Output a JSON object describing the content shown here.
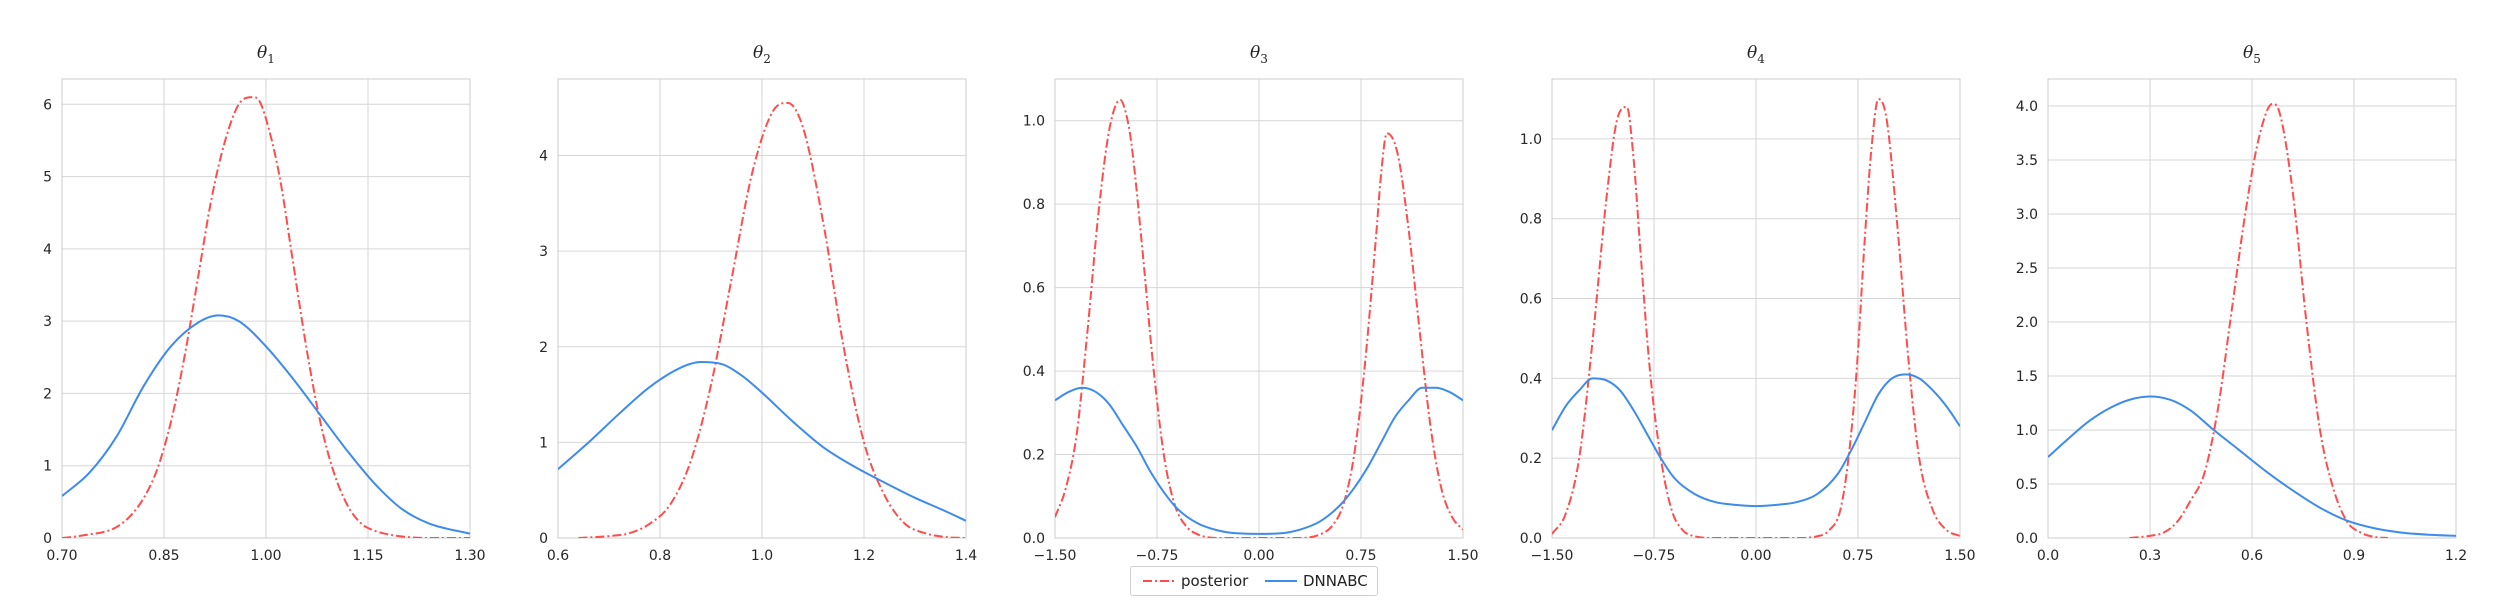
{
  "chart_data": [
    {
      "type": "line",
      "title": "θ",
      "title_sub": "1",
      "xlim": [
        0.7,
        1.3
      ],
      "ylim": [
        0,
        6.35
      ],
      "xticks": [
        0.7,
        0.85,
        1.0,
        1.15,
        1.3
      ],
      "xtick_labels": [
        "0.70",
        "0.85",
        "1.00",
        "1.15",
        "1.30"
      ],
      "yticks": [
        0,
        1,
        2,
        3,
        4,
        5,
        6
      ],
      "ytick_labels": [
        "0",
        "1",
        "2",
        "3",
        "4",
        "5",
        "6"
      ],
      "grid": true,
      "series": [
        {
          "name": "posterior",
          "color": "#ff4d4d",
          "style": "dashdot",
          "x": [
            0.7,
            0.72,
            0.74,
            0.76,
            0.78,
            0.8,
            0.82,
            0.84,
            0.86,
            0.88,
            0.9,
            0.92,
            0.94,
            0.96,
            0.98,
            0.99,
            1.0,
            1.02,
            1.04,
            1.06,
            1.08,
            1.1,
            1.12,
            1.14,
            1.16,
            1.18,
            1.2,
            1.24,
            1.3
          ],
          "y": [
            0.0,
            0.02,
            0.05,
            0.08,
            0.15,
            0.3,
            0.55,
            0.95,
            1.6,
            2.5,
            3.6,
            4.7,
            5.5,
            6.0,
            6.1,
            6.05,
            5.8,
            5.0,
            3.8,
            2.6,
            1.6,
            0.9,
            0.45,
            0.2,
            0.1,
            0.05,
            0.02,
            0.0,
            0.0
          ]
        },
        {
          "name": "DNNABC",
          "color": "#3d8bec",
          "style": "solid",
          "x": [
            0.7,
            0.74,
            0.78,
            0.82,
            0.86,
            0.9,
            0.93,
            0.96,
            1.0,
            1.04,
            1.08,
            1.12,
            1.16,
            1.2,
            1.24,
            1.3
          ],
          "y": [
            0.58,
            0.9,
            1.4,
            2.1,
            2.65,
            2.98,
            3.08,
            3.0,
            2.65,
            2.2,
            1.7,
            1.2,
            0.75,
            0.4,
            0.2,
            0.06
          ]
        }
      ]
    },
    {
      "type": "line",
      "title": "θ",
      "title_sub": "2",
      "xlim": [
        0.6,
        1.4
      ],
      "ylim": [
        0,
        4.8
      ],
      "xticks": [
        0.6,
        0.8,
        1.0,
        1.2,
        1.4
      ],
      "xtick_labels": [
        "0.6",
        "0.8",
        "1.0",
        "1.2",
        "1.4"
      ],
      "yticks": [
        0,
        1,
        2,
        3,
        4
      ],
      "ytick_labels": [
        "0",
        "1",
        "2",
        "3",
        "4"
      ],
      "grid": true,
      "series": [
        {
          "name": "posterior",
          "color": "#ff4d4d",
          "style": "dashdot",
          "x": [
            0.64,
            0.7,
            0.74,
            0.78,
            0.82,
            0.86,
            0.9,
            0.94,
            0.98,
            1.02,
            1.05,
            1.08,
            1.12,
            1.16,
            1.2,
            1.24,
            1.28,
            1.32,
            1.36,
            1.4
          ],
          "y": [
            0.0,
            0.02,
            0.05,
            0.15,
            0.35,
            0.8,
            1.6,
            2.7,
            3.8,
            4.45,
            4.55,
            4.3,
            3.3,
            2.0,
            1.0,
            0.45,
            0.15,
            0.05,
            0.01,
            0.0
          ]
        },
        {
          "name": "DNNABC",
          "color": "#3d8bec",
          "style": "solid",
          "x": [
            0.6,
            0.66,
            0.72,
            0.78,
            0.84,
            0.88,
            0.92,
            0.96,
            1.0,
            1.06,
            1.12,
            1.18,
            1.24,
            1.3,
            1.36,
            1.4
          ],
          "y": [
            0.72,
            1.0,
            1.3,
            1.58,
            1.78,
            1.84,
            1.82,
            1.7,
            1.52,
            1.22,
            0.95,
            0.75,
            0.58,
            0.42,
            0.28,
            0.18
          ]
        }
      ]
    },
    {
      "type": "line",
      "title": "θ",
      "title_sub": "3",
      "xlim": [
        -1.5,
        1.5
      ],
      "ylim": [
        0,
        1.1
      ],
      "xticks": [
        -1.5,
        -0.75,
        0.0,
        0.75,
        1.5
      ],
      "xtick_labels": [
        "−1.50",
        "−0.75",
        "0.00",
        "0.75",
        "1.50"
      ],
      "yticks": [
        0,
        0.2,
        0.4,
        0.6,
        0.8,
        1.0
      ],
      "ytick_labels": [
        "0.0",
        "0.2",
        "0.4",
        "0.6",
        "0.8",
        "1.0"
      ],
      "grid": true,
      "series": [
        {
          "name": "posterior",
          "color": "#ff4d4d",
          "style": "dashdot",
          "x": [
            -1.5,
            -1.42,
            -1.34,
            -1.26,
            -1.18,
            -1.1,
            -1.02,
            -0.98,
            -0.94,
            -0.86,
            -0.78,
            -0.7,
            -0.62,
            -0.54,
            -0.46,
            -0.3,
            0.0,
            0.3,
            0.46,
            0.54,
            0.62,
            0.7,
            0.78,
            0.86,
            0.9,
            0.94,
            1.02,
            1.1,
            1.18,
            1.26,
            1.34,
            1.42,
            1.5
          ],
          "y": [
            0.05,
            0.12,
            0.25,
            0.5,
            0.78,
            0.98,
            1.05,
            1.02,
            0.95,
            0.7,
            0.42,
            0.2,
            0.08,
            0.03,
            0.01,
            0.0,
            0.0,
            0.0,
            0.01,
            0.03,
            0.08,
            0.2,
            0.42,
            0.72,
            0.88,
            0.97,
            0.92,
            0.74,
            0.5,
            0.27,
            0.12,
            0.05,
            0.02
          ]
        },
        {
          "name": "DNNABC",
          "color": "#3d8bec",
          "style": "solid",
          "x": [
            -1.5,
            -1.4,
            -1.3,
            -1.2,
            -1.1,
            -1.0,
            -0.9,
            -0.8,
            -0.7,
            -0.6,
            -0.45,
            -0.3,
            -0.15,
            0.0,
            0.15,
            0.3,
            0.45,
            0.6,
            0.7,
            0.8,
            0.9,
            1.0,
            1.1,
            1.2,
            1.3,
            1.4,
            1.5
          ],
          "y": [
            0.33,
            0.35,
            0.36,
            0.35,
            0.32,
            0.27,
            0.22,
            0.16,
            0.11,
            0.07,
            0.035,
            0.018,
            0.011,
            0.01,
            0.011,
            0.02,
            0.04,
            0.08,
            0.12,
            0.17,
            0.23,
            0.29,
            0.33,
            0.36,
            0.36,
            0.35,
            0.33
          ]
        }
      ]
    },
    {
      "type": "line",
      "title": "θ",
      "title_sub": "4",
      "xlim": [
        -1.5,
        1.5
      ],
      "ylim": [
        0,
        1.15
      ],
      "xticks": [
        -1.5,
        -0.75,
        0.0,
        0.75,
        1.5
      ],
      "xtick_labels": [
        "−1.50",
        "−0.75",
        "0.00",
        "0.75",
        "1.50"
      ],
      "yticks": [
        0,
        0.2,
        0.4,
        0.6,
        0.8,
        1.0
      ],
      "ytick_labels": [
        "0.0",
        "0.2",
        "0.4",
        "0.6",
        "0.8",
        "1.0"
      ],
      "grid": true,
      "series": [
        {
          "name": "posterior",
          "color": "#ff4d4d",
          "style": "dashdot",
          "x": [
            -1.5,
            -1.4,
            -1.3,
            -1.2,
            -1.1,
            -1.02,
            -0.95,
            -0.9,
            -0.85,
            -0.78,
            -0.7,
            -0.62,
            -0.54,
            -0.46,
            -0.3,
            0.0,
            0.3,
            0.46,
            0.54,
            0.62,
            0.68,
            0.74,
            0.8,
            0.85,
            0.9,
            0.96,
            1.04,
            1.12,
            1.2,
            1.3,
            1.4,
            1.5
          ],
          "y": [
            0.01,
            0.06,
            0.2,
            0.5,
            0.85,
            1.05,
            1.08,
            0.95,
            0.72,
            0.42,
            0.2,
            0.07,
            0.02,
            0.005,
            0.0,
            0.0,
            0.0,
            0.005,
            0.02,
            0.07,
            0.2,
            0.42,
            0.75,
            0.98,
            1.1,
            1.05,
            0.78,
            0.45,
            0.2,
            0.07,
            0.02,
            0.005
          ]
        },
        {
          "name": "DNNABC",
          "color": "#3d8bec",
          "style": "solid",
          "x": [
            -1.5,
            -1.4,
            -1.3,
            -1.2,
            -1.1,
            -1.0,
            -0.9,
            -0.8,
            -0.7,
            -0.6,
            -0.45,
            -0.3,
            -0.15,
            0.0,
            0.15,
            0.3,
            0.45,
            0.6,
            0.7,
            0.8,
            0.9,
            1.0,
            1.1,
            1.2,
            1.3,
            1.4,
            1.5
          ],
          "y": [
            0.27,
            0.33,
            0.37,
            0.4,
            0.395,
            0.37,
            0.32,
            0.26,
            0.2,
            0.15,
            0.11,
            0.09,
            0.083,
            0.08,
            0.083,
            0.09,
            0.11,
            0.16,
            0.22,
            0.29,
            0.36,
            0.4,
            0.41,
            0.4,
            0.37,
            0.33,
            0.28
          ]
        }
      ]
    },
    {
      "type": "line",
      "title": "θ",
      "title_sub": "5",
      "xlim": [
        0.0,
        1.2
      ],
      "ylim": [
        0,
        4.25
      ],
      "xticks": [
        0.0,
        0.3,
        0.6,
        0.9,
        1.2
      ],
      "xtick_labels": [
        "0.0",
        "0.3",
        "0.6",
        "0.9",
        "1.2"
      ],
      "yticks": [
        0,
        0.5,
        1.0,
        1.5,
        2.0,
        2.5,
        3.0,
        3.5,
        4.0
      ],
      "ytick_labels": [
        "0.0",
        "0.5",
        "1.0",
        "1.5",
        "2.0",
        "2.5",
        "3.0",
        "3.5",
        "4.0"
      ],
      "grid": true,
      "series": [
        {
          "name": "posterior",
          "color": "#ff4d4d",
          "style": "dashdot",
          "x": [
            0.24,
            0.3,
            0.34,
            0.38,
            0.42,
            0.46,
            0.5,
            0.54,
            0.58,
            0.62,
            0.66,
            0.68,
            0.72,
            0.76,
            0.8,
            0.84,
            0.88,
            0.92,
            0.96,
            1.0
          ],
          "y": [
            0.0,
            0.02,
            0.05,
            0.15,
            0.35,
            0.6,
            1.2,
            2.1,
            3.0,
            3.7,
            4.02,
            3.95,
            3.2,
            2.0,
            1.0,
            0.45,
            0.15,
            0.05,
            0.01,
            0.0
          ]
        },
        {
          "name": "DNNABC",
          "color": "#3d8bec",
          "style": "solid",
          "x": [
            0.0,
            0.06,
            0.12,
            0.18,
            0.24,
            0.3,
            0.36,
            0.42,
            0.48,
            0.56,
            0.64,
            0.72,
            0.8,
            0.88,
            0.96,
            1.04,
            1.12,
            1.2
          ],
          "y": [
            0.75,
            0.92,
            1.08,
            1.2,
            1.28,
            1.31,
            1.28,
            1.18,
            1.02,
            0.82,
            0.62,
            0.44,
            0.28,
            0.16,
            0.09,
            0.05,
            0.03,
            0.02
          ]
        }
      ]
    }
  ],
  "legend": {
    "items": [
      {
        "label": "posterior",
        "color": "#ff4d4d",
        "style": "dashdot"
      },
      {
        "label": "DNNABC",
        "color": "#3d8bec",
        "style": "solid"
      }
    ]
  }
}
